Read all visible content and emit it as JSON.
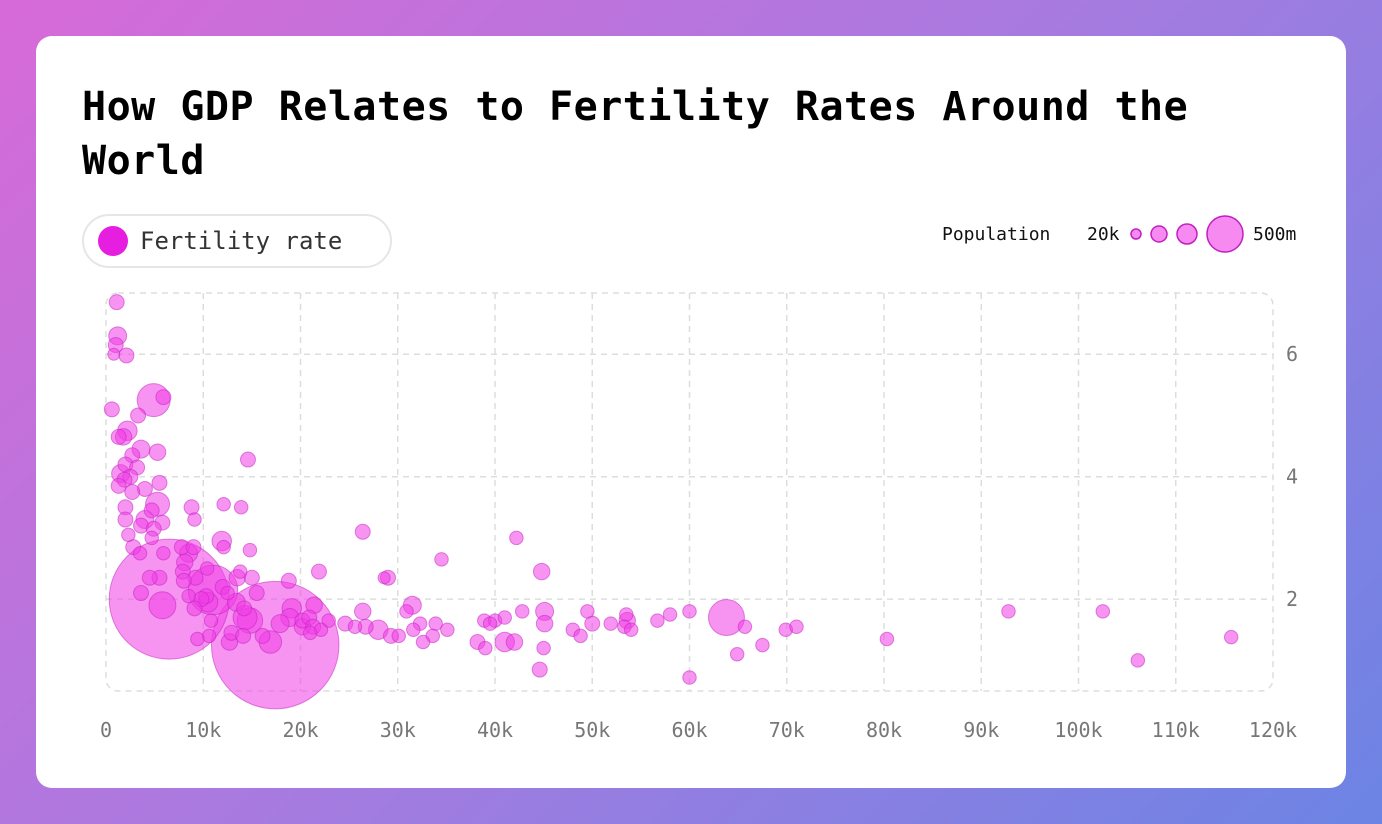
{
  "title": "How GDP Relates to Fertility Rates Around the World",
  "legend": {
    "series_label": "Fertility rate",
    "series_color": "#e61ee0"
  },
  "size_legend": {
    "label": "Population",
    "min_label": "20k",
    "max_label": "500m"
  },
  "colors": {
    "bubble_fill": "#f03ce6",
    "bubble_stroke": "#c020c0",
    "grid": "#dddddd",
    "tick": "#777777"
  },
  "chart_data": {
    "type": "scatter",
    "title": "How GDP Relates to Fertility Rates Around the World",
    "xlabel": "",
    "ylabel": "",
    "xlim": [
      0,
      120000
    ],
    "ylim": [
      0.5,
      7
    ],
    "x_ticks": [
      0,
      10000,
      20000,
      30000,
      40000,
      50000,
      60000,
      70000,
      80000,
      90000,
      100000,
      110000,
      120000
    ],
    "x_tick_labels": [
      "0",
      "10k",
      "20k",
      "30k",
      "40k",
      "50k",
      "60k",
      "70k",
      "80k",
      "90k",
      "100k",
      "110k",
      "120k"
    ],
    "y_ticks": [
      2,
      4,
      6
    ],
    "y_tick_labels": [
      "2",
      "4",
      "6"
    ],
    "size_variable": "Population",
    "series": [
      {
        "name": "Fertility rate",
        "points": [
          {
            "x": 1100,
            "y": 6.85,
            "s": 1
          },
          {
            "x": 1200,
            "y": 6.3,
            "s": 1.2
          },
          {
            "x": 1000,
            "y": 6.15,
            "s": 1
          },
          {
            "x": 800,
            "y": 6.0,
            "s": 0.8
          },
          {
            "x": 2100,
            "y": 5.98,
            "s": 1
          },
          {
            "x": 5900,
            "y": 5.3,
            "s": 1
          },
          {
            "x": 4900,
            "y": 5.25,
            "s": 2.2
          },
          {
            "x": 600,
            "y": 5.1,
            "s": 1
          },
          {
            "x": 3300,
            "y": 5.0,
            "s": 1
          },
          {
            "x": 1300,
            "y": 4.65,
            "s": 1
          },
          {
            "x": 2200,
            "y": 4.75,
            "s": 1.3
          },
          {
            "x": 1800,
            "y": 4.65,
            "s": 1.1
          },
          {
            "x": 3600,
            "y": 4.45,
            "s": 1.2
          },
          {
            "x": 5300,
            "y": 4.4,
            "s": 1.1
          },
          {
            "x": 2700,
            "y": 4.35,
            "s": 1
          },
          {
            "x": 14600,
            "y": 4.28,
            "s": 1
          },
          {
            "x": 2000,
            "y": 4.2,
            "s": 1
          },
          {
            "x": 3200,
            "y": 4.15,
            "s": 1
          },
          {
            "x": 1500,
            "y": 4.05,
            "s": 1.2
          },
          {
            "x": 2500,
            "y": 4.0,
            "s": 1
          },
          {
            "x": 1900,
            "y": 3.95,
            "s": 1
          },
          {
            "x": 5500,
            "y": 3.9,
            "s": 1
          },
          {
            "x": 1300,
            "y": 3.85,
            "s": 1
          },
          {
            "x": 4000,
            "y": 3.8,
            "s": 1
          },
          {
            "x": 2700,
            "y": 3.75,
            "s": 1
          },
          {
            "x": 5300,
            "y": 3.55,
            "s": 1.6
          },
          {
            "x": 8800,
            "y": 3.5,
            "s": 1
          },
          {
            "x": 12100,
            "y": 3.55,
            "s": 0.9
          },
          {
            "x": 13900,
            "y": 3.5,
            "s": 0.9
          },
          {
            "x": 4700,
            "y": 3.45,
            "s": 1
          },
          {
            "x": 2000,
            "y": 3.5,
            "s": 1
          },
          {
            "x": 4000,
            "y": 3.3,
            "s": 1.2
          },
          {
            "x": 5800,
            "y": 3.25,
            "s": 1
          },
          {
            "x": 9100,
            "y": 3.3,
            "s": 0.9
          },
          {
            "x": 2000,
            "y": 3.3,
            "s": 1
          },
          {
            "x": 3600,
            "y": 3.2,
            "s": 1
          },
          {
            "x": 4900,
            "y": 3.15,
            "s": 1
          },
          {
            "x": 2300,
            "y": 3.05,
            "s": 0.9
          },
          {
            "x": 4700,
            "y": 3.0,
            "s": 0.9
          },
          {
            "x": 26400,
            "y": 3.1,
            "s": 1
          },
          {
            "x": 42200,
            "y": 3.0,
            "s": 0.9
          },
          {
            "x": 11900,
            "y": 2.95,
            "s": 1.3
          },
          {
            "x": 2800,
            "y": 2.85,
            "s": 1
          },
          {
            "x": 7800,
            "y": 2.85,
            "s": 1
          },
          {
            "x": 9000,
            "y": 2.85,
            "s": 1
          },
          {
            "x": 14800,
            "y": 2.8,
            "s": 0.9
          },
          {
            "x": 12100,
            "y": 2.85,
            "s": 0.9
          },
          {
            "x": 3500,
            "y": 2.75,
            "s": 0.9
          },
          {
            "x": 8500,
            "y": 2.75,
            "s": 1.2
          },
          {
            "x": 5900,
            "y": 2.75,
            "s": 0.9
          },
          {
            "x": 34500,
            "y": 2.65,
            "s": 0.9
          },
          {
            "x": 8100,
            "y": 2.6,
            "s": 1.1
          },
          {
            "x": 10400,
            "y": 2.5,
            "s": 0.9
          },
          {
            "x": 7900,
            "y": 2.45,
            "s": 1
          },
          {
            "x": 21900,
            "y": 2.45,
            "s": 1
          },
          {
            "x": 13800,
            "y": 2.45,
            "s": 0.9
          },
          {
            "x": 44800,
            "y": 2.45,
            "s": 1.1
          },
          {
            "x": 5500,
            "y": 2.35,
            "s": 1
          },
          {
            "x": 4500,
            "y": 2.35,
            "s": 1
          },
          {
            "x": 9200,
            "y": 2.35,
            "s": 1
          },
          {
            "x": 13500,
            "y": 2.35,
            "s": 1.1
          },
          {
            "x": 15000,
            "y": 2.35,
            "s": 1
          },
          {
            "x": 29000,
            "y": 2.35,
            "s": 1
          },
          {
            "x": 28600,
            "y": 2.35,
            "s": 0.8
          },
          {
            "x": 18800,
            "y": 2.3,
            "s": 1
          },
          {
            "x": 8000,
            "y": 2.3,
            "s": 1
          },
          {
            "x": 12000,
            "y": 2.2,
            "s": 1
          },
          {
            "x": 11000,
            "y": 2.15,
            "s": 3.3
          },
          {
            "x": 6500,
            "y": 2.0,
            "s": 8.0
          },
          {
            "x": 5800,
            "y": 1.9,
            "s": 1.8
          },
          {
            "x": 3600,
            "y": 2.1,
            "s": 1
          },
          {
            "x": 8500,
            "y": 2.05,
            "s": 0.9
          },
          {
            "x": 10300,
            "y": 2.05,
            "s": 1
          },
          {
            "x": 12500,
            "y": 2.1,
            "s": 0.9
          },
          {
            "x": 15500,
            "y": 2.1,
            "s": 1
          },
          {
            "x": 9800,
            "y": 2.0,
            "s": 1
          },
          {
            "x": 10500,
            "y": 1.95,
            "s": 1.3
          },
          {
            "x": 13400,
            "y": 1.95,
            "s": 1.2
          },
          {
            "x": 14200,
            "y": 1.85,
            "s": 1
          },
          {
            "x": 9100,
            "y": 1.85,
            "s": 1
          },
          {
            "x": 19100,
            "y": 1.85,
            "s": 1.3
          },
          {
            "x": 21400,
            "y": 1.9,
            "s": 1.1
          },
          {
            "x": 31500,
            "y": 1.9,
            "s": 1.2
          },
          {
            "x": 26400,
            "y": 1.8,
            "s": 1.1
          },
          {
            "x": 30900,
            "y": 1.8,
            "s": 0.9
          },
          {
            "x": 45100,
            "y": 1.8,
            "s": 1.2
          },
          {
            "x": 49500,
            "y": 1.8,
            "s": 0.9
          },
          {
            "x": 42800,
            "y": 1.8,
            "s": 0.9
          },
          {
            "x": 58000,
            "y": 1.75,
            "s": 0.9
          },
          {
            "x": 60000,
            "y": 1.8,
            "s": 0.9
          },
          {
            "x": 63800,
            "y": 1.7,
            "s": 2.4
          },
          {
            "x": 53500,
            "y": 1.75,
            "s": 0.9
          },
          {
            "x": 92800,
            "y": 1.8,
            "s": 0.9
          },
          {
            "x": 102500,
            "y": 1.8,
            "s": 0.9
          },
          {
            "x": 14300,
            "y": 1.7,
            "s": 1.6
          },
          {
            "x": 14800,
            "y": 1.65,
            "s": 1.7
          },
          {
            "x": 18900,
            "y": 1.7,
            "s": 1.2
          },
          {
            "x": 20200,
            "y": 1.65,
            "s": 1
          },
          {
            "x": 20900,
            "y": 1.7,
            "s": 1
          },
          {
            "x": 17900,
            "y": 1.6,
            "s": 1.2
          },
          {
            "x": 10800,
            "y": 1.65,
            "s": 0.9
          },
          {
            "x": 22900,
            "y": 1.65,
            "s": 0.9
          },
          {
            "x": 24600,
            "y": 1.6,
            "s": 1
          },
          {
            "x": 21300,
            "y": 1.55,
            "s": 1
          },
          {
            "x": 25600,
            "y": 1.55,
            "s": 0.9
          },
          {
            "x": 26700,
            "y": 1.55,
            "s": 1
          },
          {
            "x": 32300,
            "y": 1.6,
            "s": 0.9
          },
          {
            "x": 33900,
            "y": 1.6,
            "s": 0.9
          },
          {
            "x": 38900,
            "y": 1.65,
            "s": 0.9
          },
          {
            "x": 40000,
            "y": 1.65,
            "s": 0.9
          },
          {
            "x": 41000,
            "y": 1.7,
            "s": 0.9
          },
          {
            "x": 39500,
            "y": 1.6,
            "s": 0.9
          },
          {
            "x": 45100,
            "y": 1.6,
            "s": 1.1
          },
          {
            "x": 50000,
            "y": 1.6,
            "s": 1
          },
          {
            "x": 51900,
            "y": 1.6,
            "s": 0.9
          },
          {
            "x": 53600,
            "y": 1.65,
            "s": 1.1
          },
          {
            "x": 56700,
            "y": 1.65,
            "s": 0.9
          },
          {
            "x": 53300,
            "y": 1.55,
            "s": 0.9
          },
          {
            "x": 65700,
            "y": 1.55,
            "s": 0.9
          },
          {
            "x": 69900,
            "y": 1.5,
            "s": 0.9
          },
          {
            "x": 71000,
            "y": 1.55,
            "s": 0.9
          },
          {
            "x": 54000,
            "y": 1.5,
            "s": 0.9
          },
          {
            "x": 48000,
            "y": 1.5,
            "s": 0.9
          },
          {
            "x": 28000,
            "y": 1.5,
            "s": 1.3
          },
          {
            "x": 22100,
            "y": 1.5,
            "s": 0.9
          },
          {
            "x": 20200,
            "y": 1.55,
            "s": 1.1
          },
          {
            "x": 31600,
            "y": 1.5,
            "s": 0.9
          },
          {
            "x": 35100,
            "y": 1.5,
            "s": 0.9
          },
          {
            "x": 12900,
            "y": 1.45,
            "s": 1
          },
          {
            "x": 14100,
            "y": 1.4,
            "s": 1
          },
          {
            "x": 16100,
            "y": 1.4,
            "s": 1
          },
          {
            "x": 10600,
            "y": 1.4,
            "s": 0.9
          },
          {
            "x": 9400,
            "y": 1.35,
            "s": 0.9
          },
          {
            "x": 21000,
            "y": 1.45,
            "s": 0.9
          },
          {
            "x": 29300,
            "y": 1.4,
            "s": 1
          },
          {
            "x": 30100,
            "y": 1.4,
            "s": 0.9
          },
          {
            "x": 33600,
            "y": 1.4,
            "s": 0.9
          },
          {
            "x": 48800,
            "y": 1.4,
            "s": 0.9
          },
          {
            "x": 80300,
            "y": 1.35,
            "s": 0.9
          },
          {
            "x": 115700,
            "y": 1.38,
            "s": 0.9
          },
          {
            "x": 17400,
            "y": 1.25,
            "s": 8.5
          },
          {
            "x": 16900,
            "y": 1.3,
            "s": 1.5
          },
          {
            "x": 12700,
            "y": 1.3,
            "s": 1.1
          },
          {
            "x": 32600,
            "y": 1.3,
            "s": 0.9
          },
          {
            "x": 38200,
            "y": 1.3,
            "s": 1
          },
          {
            "x": 41000,
            "y": 1.3,
            "s": 1.3
          },
          {
            "x": 42000,
            "y": 1.3,
            "s": 1.1
          },
          {
            "x": 67500,
            "y": 1.25,
            "s": 0.9
          },
          {
            "x": 39000,
            "y": 1.2,
            "s": 0.9
          },
          {
            "x": 45000,
            "y": 1.2,
            "s": 0.9
          },
          {
            "x": 64900,
            "y": 1.1,
            "s": 0.9
          },
          {
            "x": 106100,
            "y": 1.0,
            "s": 0.9
          },
          {
            "x": 44600,
            "y": 0.85,
            "s": 1
          },
          {
            "x": 60000,
            "y": 0.72,
            "s": 0.9
          }
        ]
      }
    ]
  }
}
